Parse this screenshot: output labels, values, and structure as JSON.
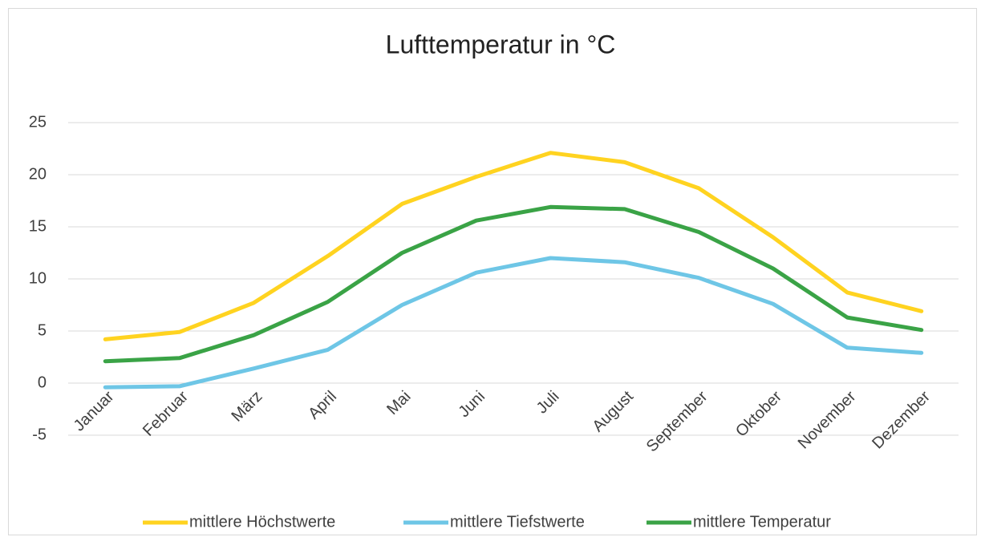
{
  "chart_data": {
    "type": "line",
    "title": "Lufttemperatur in °C",
    "categories": [
      "Januar",
      "Februar",
      "März",
      "April",
      "Mai",
      "Juni",
      "Juli",
      "August",
      "September",
      "Oktober",
      "November",
      "Dezember"
    ],
    "series": [
      {
        "name": "mittlere Höchstwerte",
        "color": "#ffd320",
        "values": [
          4.2,
          4.9,
          7.7,
          12.2,
          17.2,
          19.8,
          22.1,
          21.2,
          18.7,
          14.0,
          8.7,
          6.9
        ]
      },
      {
        "name": "mittlere Tiefstwerte",
        "color": "#6ec6e6",
        "values": [
          -0.4,
          -0.3,
          1.4,
          3.2,
          7.5,
          10.6,
          12.0,
          11.6,
          10.1,
          7.6,
          3.4,
          2.9
        ]
      },
      {
        "name": "mittlere Temperatur",
        "color": "#3aa346",
        "values": [
          2.1,
          2.4,
          4.6,
          7.8,
          12.5,
          15.6,
          16.9,
          16.7,
          14.5,
          11.0,
          6.3,
          5.1
        ]
      }
    ],
    "ylim": [
      -5,
      25
    ],
    "yticks": [
      -5,
      0,
      5,
      10,
      15,
      20,
      25
    ],
    "grid": true,
    "legend": "bottom"
  }
}
